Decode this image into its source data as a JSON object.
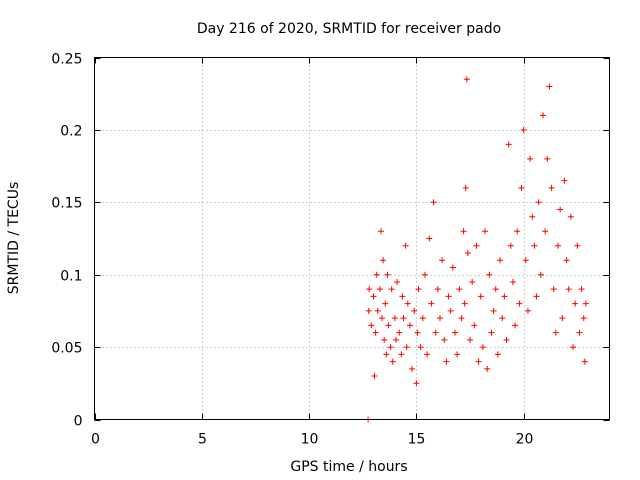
{
  "chart_data": {
    "type": "scatter",
    "title": "Day 216 of 2020, SRMTID for receiver pado",
    "xlabel": "GPS time / hours",
    "ylabel": "SRMTID / TECUs",
    "xlim": [
      0,
      24
    ],
    "ylim": [
      0,
      0.25
    ],
    "x_ticks": [
      0,
      5,
      10,
      15,
      20
    ],
    "x_tick_labels": [
      "0",
      "5",
      "10",
      "15",
      "20"
    ],
    "y_ticks": [
      0,
      0.05,
      0.1,
      0.15,
      0.2,
      0.25
    ],
    "y_tick_labels": [
      "0",
      "0.05",
      "0.1",
      "0.15",
      "0.2",
      "0.25"
    ],
    "grid": true,
    "marker": "plus",
    "color": "#ff0000",
    "series": [
      {
        "name": "SRMTID",
        "x": [
          12.75,
          12.78,
          12.8,
          12.9,
          13.0,
          13.05,
          13.1,
          13.15,
          13.2,
          13.3,
          13.35,
          13.4,
          13.45,
          13.5,
          13.55,
          13.6,
          13.65,
          13.7,
          13.8,
          13.85,
          13.9,
          14.0,
          14.05,
          14.1,
          14.2,
          14.3,
          14.35,
          14.4,
          14.5,
          14.55,
          14.6,
          14.7,
          14.8,
          14.9,
          15.0,
          15.05,
          15.1,
          15.2,
          15.3,
          15.4,
          15.5,
          15.6,
          15.7,
          15.8,
          15.9,
          16.0,
          16.1,
          16.2,
          16.3,
          16.4,
          16.5,
          16.6,
          16.7,
          16.8,
          16.9,
          17.0,
          17.1,
          17.2,
          17.25,
          17.3,
          17.35,
          17.4,
          17.5,
          17.6,
          17.7,
          17.8,
          17.9,
          18.0,
          18.1,
          18.2,
          18.3,
          18.4,
          18.5,
          18.6,
          18.7,
          18.8,
          18.9,
          19.0,
          19.1,
          19.2,
          19.3,
          19.4,
          19.5,
          19.6,
          19.7,
          19.8,
          19.9,
          20.0,
          20.1,
          20.2,
          20.3,
          20.4,
          20.5,
          20.6,
          20.7,
          20.8,
          20.9,
          21.0,
          21.1,
          21.2,
          21.3,
          21.4,
          21.5,
          21.6,
          21.7,
          21.8,
          21.9,
          22.0,
          22.1,
          22.2,
          22.3,
          22.4,
          22.5,
          22.6,
          22.7,
          22.8,
          22.85,
          22.9
        ],
        "y": [
          0.0,
          0.075,
          0.09,
          0.065,
          0.085,
          0.03,
          0.06,
          0.1,
          0.075,
          0.09,
          0.13,
          0.07,
          0.11,
          0.055,
          0.08,
          0.045,
          0.1,
          0.065,
          0.05,
          0.09,
          0.04,
          0.07,
          0.055,
          0.095,
          0.06,
          0.045,
          0.085,
          0.07,
          0.12,
          0.05,
          0.08,
          0.065,
          0.035,
          0.075,
          0.025,
          0.06,
          0.09,
          0.05,
          0.07,
          0.1,
          0.045,
          0.125,
          0.08,
          0.15,
          0.06,
          0.09,
          0.07,
          0.11,
          0.055,
          0.04,
          0.085,
          0.075,
          0.105,
          0.06,
          0.045,
          0.09,
          0.07,
          0.13,
          0.08,
          0.16,
          0.235,
          0.115,
          0.055,
          0.095,
          0.065,
          0.12,
          0.04,
          0.085,
          0.05,
          0.13,
          0.035,
          0.1,
          0.06,
          0.075,
          0.09,
          0.045,
          0.11,
          0.07,
          0.085,
          0.055,
          0.19,
          0.12,
          0.095,
          0.065,
          0.13,
          0.08,
          0.16,
          0.2,
          0.11,
          0.075,
          0.18,
          0.14,
          0.12,
          0.085,
          0.15,
          0.1,
          0.21,
          0.13,
          0.18,
          0.23,
          0.16,
          0.09,
          0.06,
          0.12,
          0.145,
          0.07,
          0.165,
          0.11,
          0.09,
          0.14,
          0.05,
          0.08,
          0.12,
          0.06,
          0.09,
          0.07,
          0.04,
          0.08
        ]
      }
    ]
  }
}
